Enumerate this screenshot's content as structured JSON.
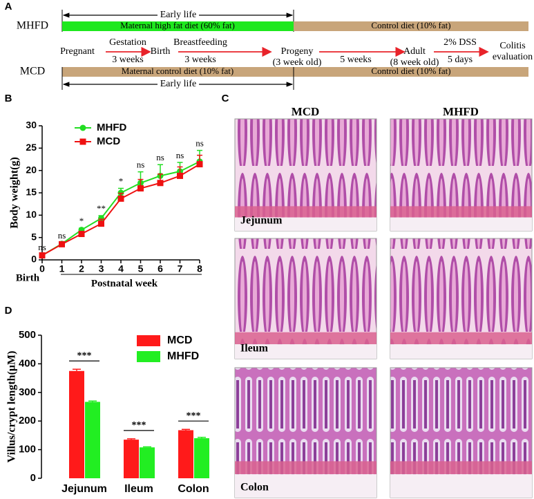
{
  "panel_a": {
    "label": "A",
    "early_life_top": "Early life",
    "mhfd": {
      "label": "MHFD",
      "early": "Maternal high fat diet (60% fat)",
      "late": "Control diet (10% fat)"
    },
    "mcd": {
      "label": "MCD",
      "early": "Maternal control diet (10% fat)",
      "late": "Control diet (10% fat)"
    },
    "stages": [
      {
        "lines": [
          "Pregnant"
        ]
      },
      {
        "lines": [
          "Birth"
        ]
      },
      {
        "lines": [
          "Progeny",
          "(3 week old)"
        ]
      },
      {
        "lines": [
          "Adult",
          "(8 week old)"
        ]
      },
      {
        "lines": [
          "Colitis",
          "evaluation"
        ]
      }
    ],
    "transitions": [
      {
        "above": "Gestation",
        "below": "3 weeks"
      },
      {
        "above": "Breastfeeding",
        "below": "3 weeks"
      },
      {
        "below": "5 weeks"
      },
      {
        "above": "2% DSS",
        "below": "5 days"
      }
    ],
    "early_life_bottom": "Early life"
  },
  "panel_c": {
    "label": "C",
    "columns": [
      "MCD",
      "MHFD"
    ],
    "rows": [
      "Jejunum",
      "Ileum",
      "Colon"
    ]
  },
  "chart_data": [
    {
      "type": "line",
      "panel": "B",
      "ylabel": "Body weight(g)",
      "xlabel": "Postnatal week",
      "x_start_label": "Birth",
      "x": [
        0,
        1,
        2,
        3,
        4,
        5,
        6,
        7,
        8
      ],
      "xlim": [
        0,
        8
      ],
      "xticks": [
        0,
        1,
        2,
        3,
        4,
        5,
        6,
        7,
        8
      ],
      "ylim": [
        0,
        30
      ],
      "yticks": [
        0,
        5,
        10,
        15,
        20,
        25,
        30
      ],
      "legend": "upper left",
      "series": [
        {
          "name": "MHFD",
          "color": "#22dd22",
          "marker": "circle",
          "values": [
            1,
            3.6,
            6.7,
            9.3,
            15,
            17.2,
            18.8,
            19.8,
            22
          ],
          "errors": [
            0.2,
            0.3,
            0.4,
            0.6,
            1.0,
            2.5,
            2.5,
            2.0,
            2.5
          ]
        },
        {
          "name": "MCD",
          "color": "#ee1111",
          "marker": "square",
          "values": [
            1,
            3.5,
            5.8,
            8.1,
            13.7,
            16,
            17.2,
            18.8,
            21.4
          ],
          "errors": [
            0.2,
            0.3,
            0.5,
            1.0,
            1.2,
            2.0,
            2.0,
            2.0,
            2.0
          ]
        }
      ],
      "annotations": [
        "ns",
        "ns",
        "*",
        "**",
        "*",
        "ns",
        "ns",
        "ns",
        "ns"
      ]
    },
    {
      "type": "bar",
      "panel": "D",
      "ylabel": "Villus/crypt length(μM)",
      "categories": [
        "Jejunum",
        "Ileum",
        "Colon"
      ],
      "ylim": [
        0,
        500
      ],
      "yticks": [
        0,
        100,
        200,
        300,
        400,
        500
      ],
      "legend": "upper right",
      "series": [
        {
          "name": "MCD",
          "color": "#ff1a1a",
          "values": [
            375,
            135,
            168
          ],
          "errors": [
            6,
            3,
            3
          ]
        },
        {
          "name": "MHFD",
          "color": "#22ee22",
          "values": [
            267,
            108,
            140
          ],
          "errors": [
            3,
            2,
            3
          ]
        }
      ],
      "annotations": [
        "***",
        "***",
        "***"
      ]
    }
  ]
}
